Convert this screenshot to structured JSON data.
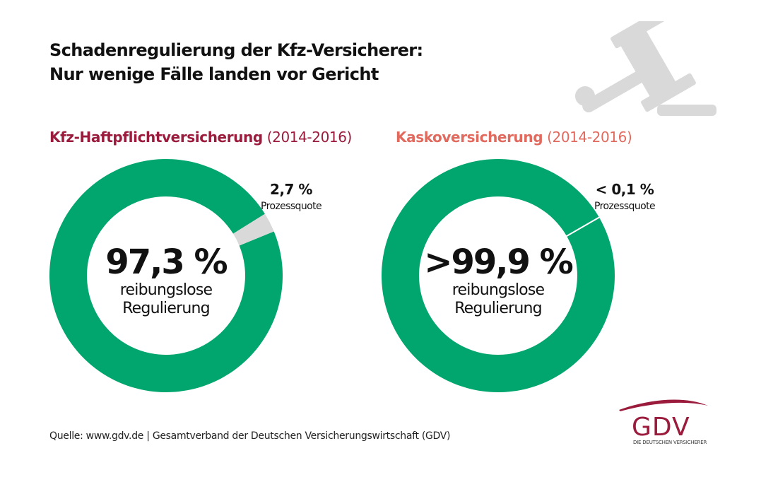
{
  "title": {
    "line1": "Schadenregulierung der Kfz-Versicherer:",
    "line2": "Nur wenige Fälle landen vor Gericht"
  },
  "source": "Quelle: www.gdv.de | Gesamtverband der Deutschen Versicherungswirtschaft (GDV)",
  "logo": {
    "text": "GDV",
    "subtitle": "DIE DEUTSCHEN VERSICHERER",
    "color": "#9b1b3c"
  },
  "icons": {
    "decoration": "gavel-icon"
  },
  "colors": {
    "green": "#00a66e",
    "grey": "#d9d9d9",
    "heading_left": "#9b1b3c",
    "heading_right": "#e16a5f",
    "gavel": "#d9d9d9"
  },
  "chart_data": [
    {
      "type": "pie",
      "variant": "donut",
      "heading": "Kfz-Haftpflichtversicherung",
      "period": "(2014-2016)",
      "center_value": "97,3 %",
      "center_label_1": "reibungslose",
      "center_label_2": "Regulierung",
      "callout_value": "2,7 %",
      "callout_label": "Prozessquote",
      "slices": [
        {
          "label": "reibungslose Regulierung",
          "value": 97.3,
          "color": "#00a66e"
        },
        {
          "label": "Prozessquote",
          "value": 2.7,
          "color": "#d9d9d9"
        }
      ]
    },
    {
      "type": "pie",
      "variant": "donut",
      "heading": "Kaskoversicherung",
      "period": "(2014-2016)",
      "center_value": ">99,9 %",
      "center_label_1": "reibungslose",
      "center_label_2": "Regulierung",
      "callout_value": "< 0,1 %",
      "callout_label": "Prozessquote",
      "slices": [
        {
          "label": "reibungslose Regulierung",
          "value": 99.9,
          "color": "#00a66e"
        },
        {
          "label": "Prozessquote",
          "value": 0.1,
          "color": "#d9d9d9"
        }
      ]
    }
  ]
}
